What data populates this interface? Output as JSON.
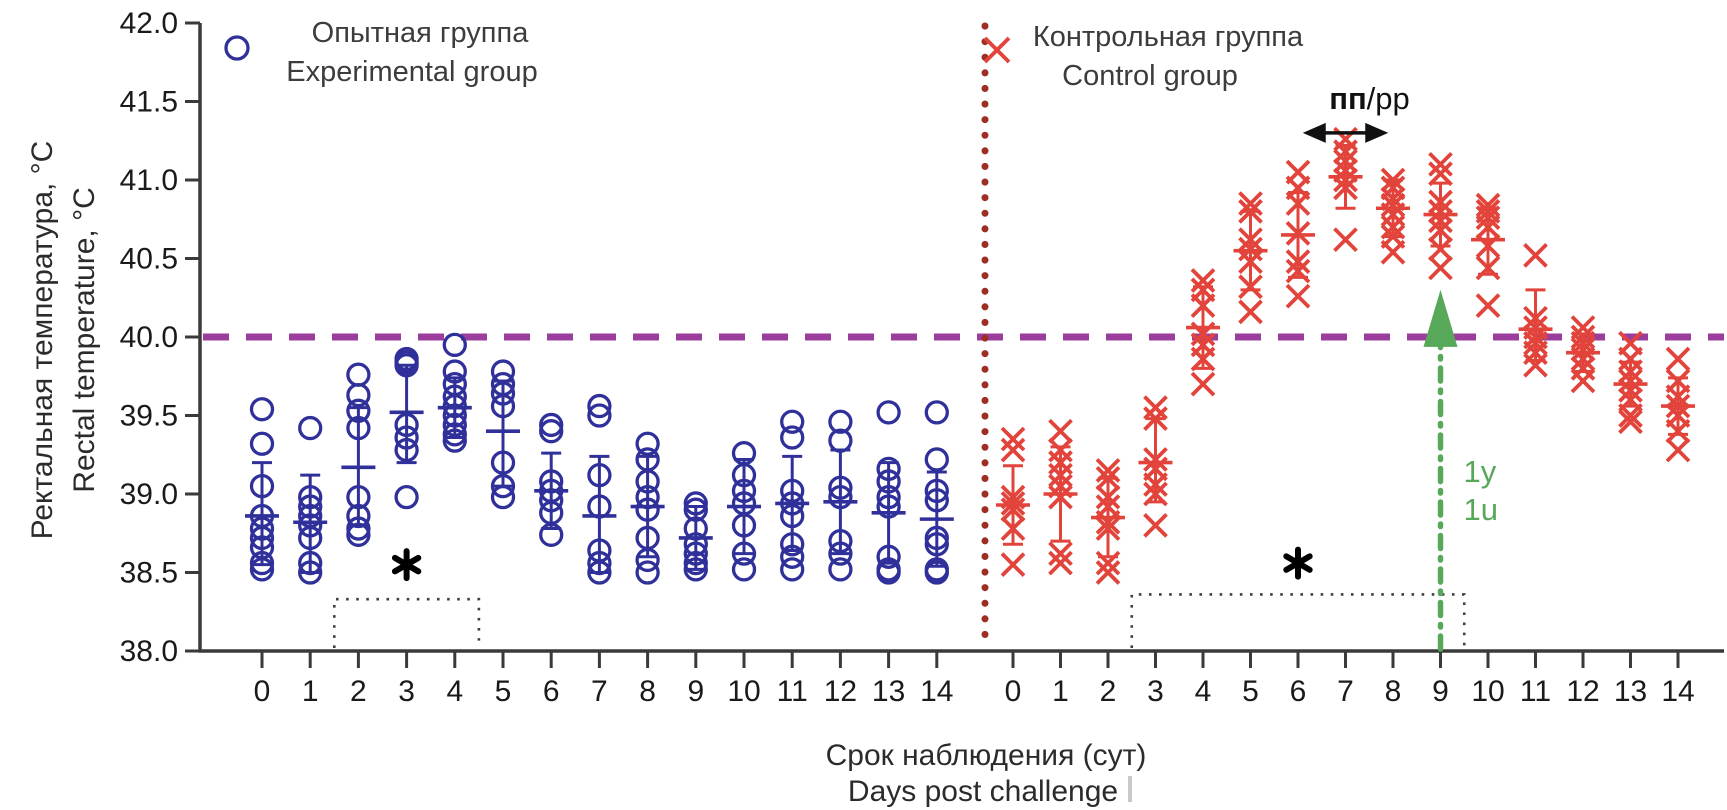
{
  "chart_data": {
    "type": "scatter",
    "title": "",
    "ylabel_lines": [
      "Ректальная температура, °C",
      "Rectal temperature, °C"
    ],
    "xlabel_lines": [
      "Срок наблюдения (сут)",
      "Days post challenge"
    ],
    "ylim": [
      38.0,
      42.0
    ],
    "yticks": [
      38.0,
      38.5,
      39.0,
      39.5,
      40.0,
      40.5,
      41.0,
      41.5,
      42.0
    ],
    "xticks": [
      0,
      1,
      2,
      3,
      4,
      5,
      6,
      7,
      8,
      9,
      10,
      11,
      12,
      13,
      14
    ],
    "grid": false,
    "axis_color": "#3a3a3a",
    "tick_label_color": "#1a1a1a",
    "legend_text_color": "#3c3c3c",
    "threshold_line": {
      "y": 40.0,
      "style": "dashed",
      "color": "#9A3D9C"
    },
    "panel_divider": {
      "style": "dotted",
      "color": "#9C2E24"
    },
    "series": [
      {
        "name_ru": "Опытная группа",
        "name_en": "Experimental group",
        "panel": "left",
        "marker": "circle",
        "color": "#30309A",
        "days": [
          0,
          1,
          2,
          3,
          4,
          5,
          6,
          7,
          8,
          9,
          10,
          11,
          12,
          13,
          14
        ],
        "points": [
          [
            39.54,
            39.32,
            39.05,
            38.86,
            38.78,
            38.72,
            38.66,
            38.56,
            38.52
          ],
          [
            39.42,
            38.98,
            38.92,
            38.86,
            38.8,
            38.72,
            38.56,
            38.5
          ],
          [
            39.76,
            39.63,
            39.53,
            39.42,
            38.98,
            38.86,
            38.78,
            38.74
          ],
          [
            39.86,
            39.84,
            39.82,
            39.44,
            39.36,
            39.28,
            38.98
          ],
          [
            39.95,
            39.78,
            39.7,
            39.62,
            39.56,
            39.5,
            39.44,
            39.38,
            39.34
          ],
          [
            39.78,
            39.7,
            39.64,
            39.56,
            39.2,
            39.05,
            38.98
          ],
          [
            39.44,
            39.4,
            39.08,
            39.02,
            38.96,
            38.88,
            38.74
          ],
          [
            39.56,
            39.5,
            39.12,
            38.92,
            38.64,
            38.56,
            38.5
          ],
          [
            39.32,
            39.22,
            39.08,
            38.98,
            38.9,
            38.72,
            38.58,
            38.5
          ],
          [
            38.94,
            38.9,
            38.78,
            38.68,
            38.62,
            38.56,
            38.52
          ],
          [
            39.26,
            39.12,
            39.02,
            38.94,
            38.8,
            38.62,
            38.52
          ],
          [
            39.46,
            39.36,
            39.02,
            38.94,
            38.86,
            38.68,
            38.6,
            38.52
          ],
          [
            39.46,
            39.34,
            39.04,
            38.98,
            38.7,
            38.62,
            38.52
          ],
          [
            39.52,
            39.16,
            39.08,
            38.98,
            38.92,
            38.6,
            38.52,
            38.5
          ],
          [
            39.52,
            39.22,
            39.02,
            38.96,
            38.72,
            38.68,
            38.52,
            38.5
          ]
        ],
        "mean": [
          38.86,
          38.82,
          39.17,
          39.52,
          39.55,
          39.4,
          39.02,
          38.86,
          38.92,
          38.72,
          38.92,
          38.94,
          38.95,
          38.88,
          38.84
        ],
        "err_low": [
          38.55,
          38.5,
          38.8,
          39.2,
          39.36,
          39.05,
          38.78,
          38.5,
          38.6,
          38.52,
          38.62,
          38.64,
          38.62,
          38.56,
          38.54
        ],
        "err_high": [
          39.2,
          39.12,
          39.55,
          39.82,
          39.74,
          39.72,
          39.26,
          39.24,
          39.24,
          38.92,
          39.22,
          39.24,
          39.28,
          39.2,
          39.14
        ],
        "asterisk": {
          "symbol": "✱",
          "day": 3,
          "y": 38.55
        },
        "bracket": {
          "day_from": 1.5,
          "day_to": 4.5,
          "y_top": 38.33
        }
      },
      {
        "name_ru": "Контрольная группа",
        "name_en": "Control group",
        "panel": "right",
        "marker": "x",
        "color": "#E2443B",
        "days": [
          0,
          1,
          2,
          3,
          4,
          5,
          6,
          7,
          8,
          9,
          10,
          11,
          12,
          13,
          14
        ],
        "points": [
          [
            39.35,
            39.28,
            38.98,
            38.94,
            38.9,
            38.78,
            38.55
          ],
          [
            39.4,
            39.28,
            39.2,
            39.12,
            39.05,
            38.98,
            38.62,
            38.56
          ],
          [
            39.15,
            39.1,
            38.98,
            38.92,
            38.82,
            38.78,
            38.56,
            38.5
          ],
          [
            39.55,
            39.48,
            39.22,
            39.16,
            39.06,
            39.0,
            38.8
          ],
          [
            40.36,
            40.3,
            40.2,
            40.02,
            39.95,
            39.86,
            39.7
          ],
          [
            40.85,
            40.8,
            40.62,
            40.56,
            40.48,
            40.32,
            40.16
          ],
          [
            41.05,
            40.95,
            40.85,
            40.66,
            40.48,
            40.42,
            40.26
          ],
          [
            41.26,
            41.18,
            41.12,
            41.06,
            41.0,
            40.95,
            40.62
          ],
          [
            41.0,
            40.95,
            40.88,
            40.84,
            40.78,
            40.7,
            40.64,
            40.54
          ],
          [
            41.1,
            41.04,
            40.86,
            40.8,
            40.74,
            40.68,
            40.56,
            40.44
          ],
          [
            40.84,
            40.8,
            40.76,
            40.7,
            40.58,
            40.44,
            40.2
          ],
          [
            40.52,
            40.12,
            40.06,
            40.0,
            39.96,
            39.9,
            39.82
          ],
          [
            40.06,
            40.0,
            39.96,
            39.92,
            39.86,
            39.8,
            39.72
          ],
          [
            39.96,
            39.86,
            39.78,
            39.72,
            39.66,
            39.6,
            39.5,
            39.46
          ],
          [
            39.86,
            39.72,
            39.62,
            39.56,
            39.5,
            39.4,
            39.28
          ]
        ],
        "mean": [
          38.93,
          39.0,
          38.85,
          39.2,
          40.06,
          40.55,
          40.65,
          41.02,
          40.82,
          40.78,
          40.62,
          40.05,
          39.9,
          39.7,
          39.56
        ],
        "err_low": [
          38.68,
          38.7,
          38.6,
          38.95,
          39.8,
          40.3,
          40.38,
          40.82,
          40.64,
          40.58,
          40.4,
          39.85,
          39.78,
          39.56,
          39.38
        ],
        "err_high": [
          39.18,
          39.3,
          39.1,
          39.48,
          40.32,
          40.8,
          40.92,
          41.22,
          41.0,
          40.98,
          40.82,
          40.3,
          40.02,
          39.84,
          39.74
        ],
        "asterisk": {
          "symbol": "✱",
          "day": 6,
          "y": 38.56
        },
        "bracket": {
          "day_from": 2.5,
          "day_to": 9.5,
          "y_top": 38.36
        },
        "pyrexia_period": {
          "label_bold": "пп",
          "label_rest": "/pp",
          "day_from": 6.1,
          "day_to": 7.9,
          "y_arrow": 41.3
        },
        "challenge_arrow": {
          "day": 9,
          "y_tip": 40.3,
          "labels": [
            "1y",
            "1u"
          ],
          "color": "#58A85A"
        }
      }
    ]
  }
}
